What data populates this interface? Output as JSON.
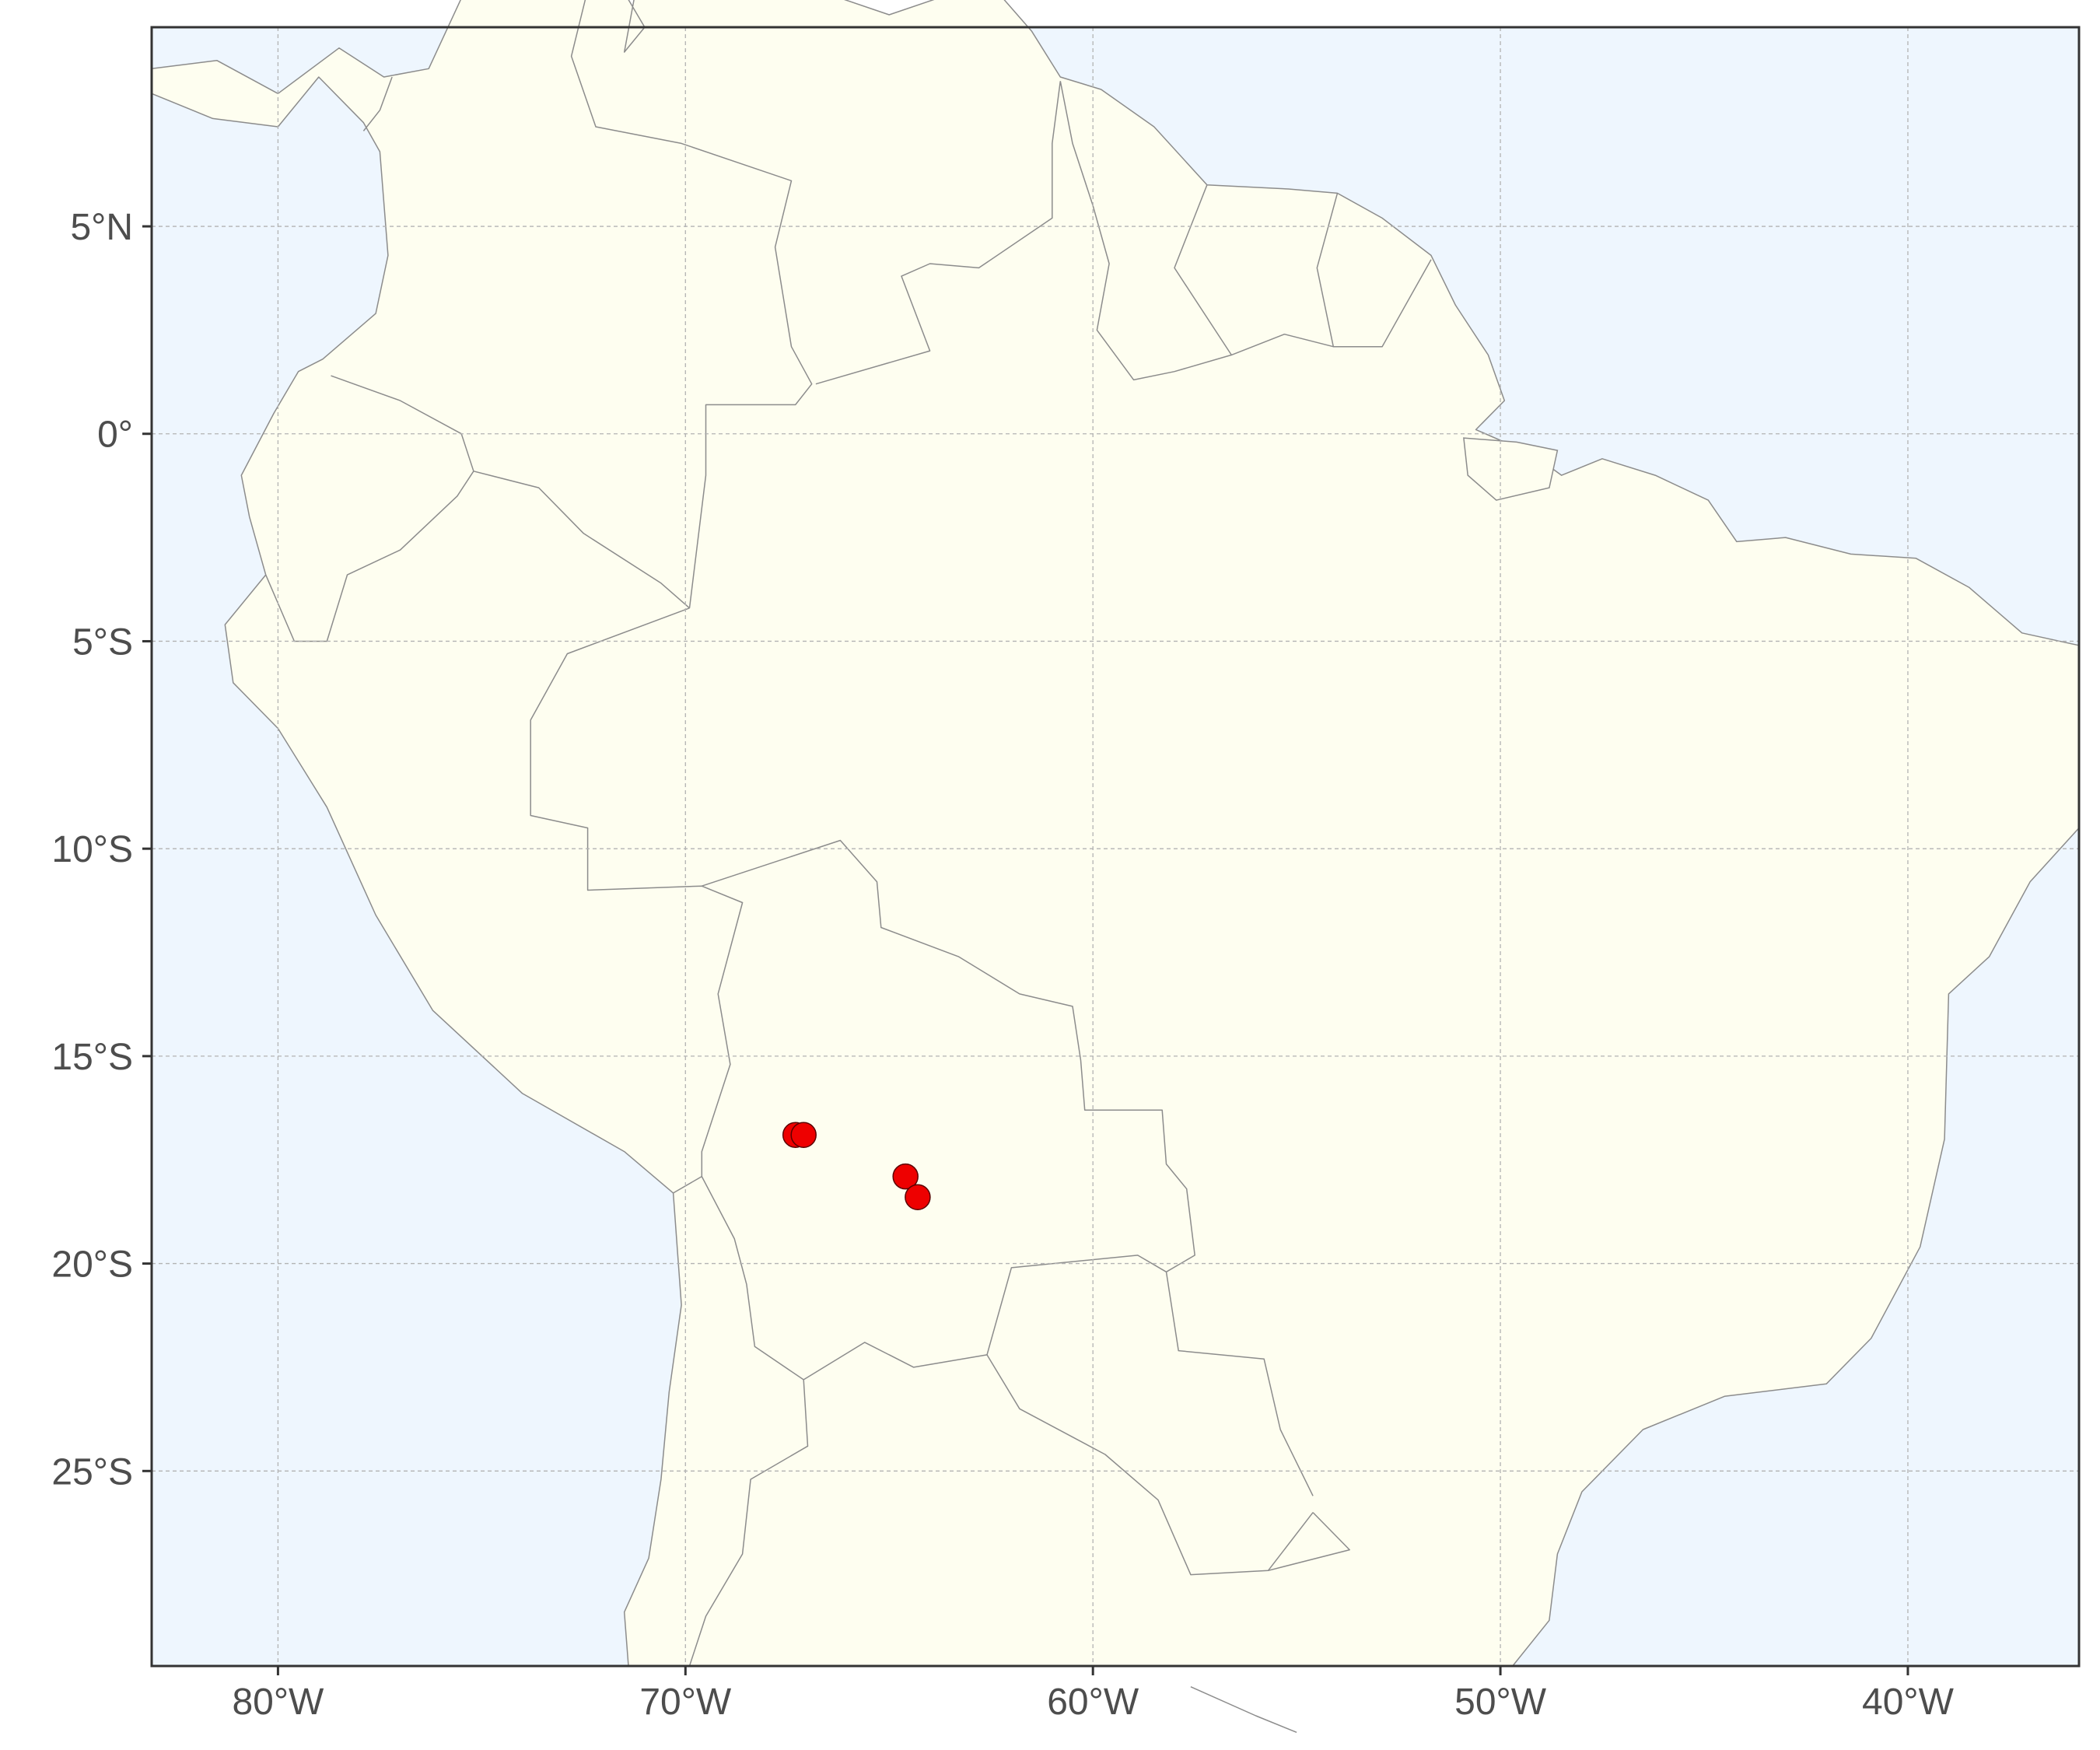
{
  "map": {
    "x_ticks": [
      {
        "lon": -80,
        "label": "80°W"
      },
      {
        "lon": -70,
        "label": "70°W"
      },
      {
        "lon": -60,
        "label": "60°W"
      },
      {
        "lon": -50,
        "label": "50°W"
      },
      {
        "lon": -40,
        "label": "40°W"
      }
    ],
    "y_ticks": [
      {
        "lat": 5,
        "label": "5°N"
      },
      {
        "lat": 0,
        "label": "0°"
      },
      {
        "lat": -5,
        "label": "5°S"
      },
      {
        "lat": -10,
        "label": "10°S"
      },
      {
        "lat": -15,
        "label": "15°S"
      },
      {
        "lat": -20,
        "label": "20°S"
      },
      {
        "lat": -25,
        "label": "25°S"
      }
    ],
    "lon_range": [
      -83.1,
      -35.8
    ],
    "lat_range": [
      -29.7,
      9.8
    ],
    "grid": "dashed",
    "colors": {
      "ocean": "#eef6fe",
      "land": "#fefef0",
      "border": "#8c8c8c",
      "grid": "#b3b3b3",
      "point_fill": "#ee0000",
      "point_stroke": "#5a0000",
      "frame": "#333333"
    },
    "points": [
      {
        "lon": -67.3,
        "lat": -16.9
      },
      {
        "lon": -67.1,
        "lat": -16.9
      },
      {
        "lon": -64.6,
        "lat": -17.9
      },
      {
        "lon": -64.3,
        "lat": -18.4
      }
    ]
  }
}
